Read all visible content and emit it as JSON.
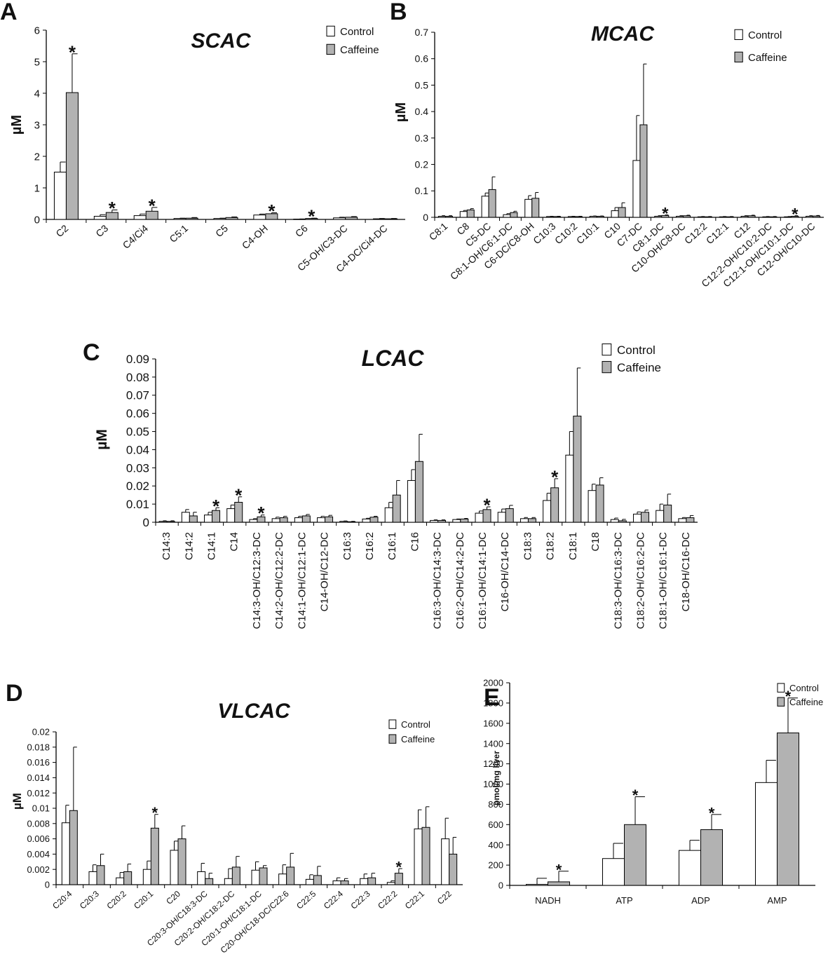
{
  "colors": {
    "control": "#ffffff",
    "caffeine": "#b2b2b2",
    "stroke": "#000000"
  },
  "chart_data": [
    {
      "id": "A",
      "type": "bar",
      "panel_label": "A",
      "title": "SCAC",
      "ylabel": "µM",
      "ylim": [
        0,
        6
      ],
      "yticks": [
        "0",
        "1",
        "2",
        "3",
        "4",
        "5",
        "6"
      ],
      "ytick_values": [
        0,
        1,
        2,
        3,
        4,
        5,
        6
      ],
      "legend": [
        "Control",
        "Caffeine"
      ],
      "categories": [
        "C2",
        "C3",
        "C4/Ci4",
        "C5:1",
        "C5",
        "C4-OH",
        "C6",
        "C5-OH/C3-DC",
        "C4-DC/Ci4-DC"
      ],
      "series": [
        {
          "name": "Control",
          "values": [
            1.5,
            0.1,
            0.12,
            0.03,
            0.03,
            0.14,
            0.01,
            0.05,
            0.02
          ],
          "errors": [
            0.32,
            0.05,
            0.05,
            0.01,
            0.01,
            0.03,
            0.005,
            0.02,
            0.01
          ]
        },
        {
          "name": "Caffeine",
          "values": [
            4.02,
            0.22,
            0.26,
            0.04,
            0.06,
            0.18,
            0.03,
            0.07,
            0.02
          ],
          "errors": [
            1.23,
            0.08,
            0.12,
            0.02,
            0.02,
            0.03,
            0.01,
            0.02,
            0.01
          ]
        }
      ],
      "significant": [
        true,
        true,
        true,
        false,
        false,
        true,
        true,
        false,
        false
      ]
    },
    {
      "id": "B",
      "type": "bar",
      "panel_label": "B",
      "title": "MCAC",
      "ylabel": "µM",
      "ylim": [
        0,
        0.7
      ],
      "yticks": [
        "0",
        "0.1",
        "0.2",
        "0.3",
        "0.4",
        "0.5",
        "0.6",
        "0.7"
      ],
      "ytick_values": [
        0,
        0.1,
        0.2,
        0.3,
        0.4,
        0.5,
        0.6,
        0.7
      ],
      "legend": [
        "Control",
        "Caffeine"
      ],
      "categories": [
        "C8:1",
        "C8",
        "C5-DC",
        "C8:1-OH/C6:1-DC",
        "C6-DC/C8-OH",
        "C10:3",
        "C10:2",
        "C10:1",
        "C10",
        "C7-DC",
        "C8:1-DC",
        "C10-OH/C8-DC",
        "C12:2",
        "C12:1",
        "C12",
        "C12:2-OH/C10:2-DC",
        "C12:1-OH/C10:1-DC",
        "C12-OH/C10-DC"
      ],
      "series": [
        {
          "name": "Control",
          "values": [
            0.004,
            0.022,
            0.08,
            0.01,
            0.068,
            0.003,
            0.003,
            0.004,
            0.025,
            0.215,
            0.004,
            0.004,
            0.002,
            0.002,
            0.004,
            0.002,
            0.002,
            0.004
          ],
          "errors": [
            0.002,
            0.004,
            0.012,
            0.004,
            0.014,
            0.001,
            0.001,
            0.001,
            0.012,
            0.17,
            0.002,
            0.002,
            0.001,
            0.001,
            0.002,
            0.001,
            0.001,
            0.002
          ]
        },
        {
          "name": "Caffeine",
          "values": [
            0.004,
            0.028,
            0.105,
            0.018,
            0.072,
            0.003,
            0.003,
            0.004,
            0.037,
            0.35,
            0.007,
            0.006,
            0.002,
            0.002,
            0.006,
            0.002,
            0.004,
            0.005
          ],
          "errors": [
            0.002,
            0.005,
            0.048,
            0.005,
            0.022,
            0.001,
            0.001,
            0.001,
            0.018,
            0.23,
            0.002,
            0.002,
            0.001,
            0.001,
            0.002,
            0.001,
            0.002,
            0.002
          ]
        }
      ],
      "significant": [
        false,
        false,
        false,
        false,
        false,
        false,
        false,
        false,
        false,
        false,
        true,
        false,
        false,
        false,
        false,
        false,
        true,
        false
      ]
    },
    {
      "id": "C",
      "type": "bar",
      "panel_label": "C",
      "title": "LCAC",
      "ylabel": "µM",
      "ylim": [
        0,
        0.09
      ],
      "yticks": [
        "0",
        "0.01",
        "0.02",
        "0.03",
        "0.04",
        "0.05",
        "0.06",
        "0.07",
        "0.08",
        "0.09"
      ],
      "ytick_values": [
        0,
        0.01,
        0.02,
        0.03,
        0.04,
        0.05,
        0.06,
        0.07,
        0.08,
        0.09
      ],
      "legend": [
        "Control",
        "Caffeine"
      ],
      "categories": [
        "C14:3",
        "C14:2",
        "C14:1",
        "C14",
        "C14:3-OH/C12:3-DC",
        "C14:2-OH/C12:2-DC",
        "C14:1-OH/C12:1-DC",
        "C14-OH/C12-DC",
        "C16:3",
        "C16:2",
        "C16:1",
        "C16",
        "C16:3-OH/C14:3-DC",
        "C16:2-OH/C14:2-DC",
        "C16:1-OH/C14:1-DC",
        "C16-OH/C14-DC",
        "C18:3",
        "C18:2",
        "C18:1",
        "C18",
        "C18:3-OH/C16:3-DC",
        "C18:2-OH/C16:2-DC",
        "C18:1-OH/C16:1-DC",
        "C18-OH/C16-DC"
      ],
      "series": [
        {
          "name": "Control",
          "values": [
            0.0005,
            0.0055,
            0.004,
            0.0075,
            0.0015,
            0.002,
            0.0025,
            0.0025,
            0.0005,
            0.0018,
            0.008,
            0.023,
            0.001,
            0.0015,
            0.005,
            0.0055,
            0.002,
            0.012,
            0.037,
            0.0175,
            0.0015,
            0.0045,
            0.0065,
            0.002
          ],
          "errors": [
            0.0003,
            0.0015,
            0.0015,
            0.002,
            0.0005,
            0.0008,
            0.0008,
            0.0008,
            0.0002,
            0.0004,
            0.003,
            0.006,
            0.0003,
            0.0003,
            0.0012,
            0.0018,
            0.0006,
            0.004,
            0.013,
            0.0035,
            0.0008,
            0.0012,
            0.0035,
            0.0006
          ]
        },
        {
          "name": "Caffeine",
          "values": [
            0.0005,
            0.0035,
            0.0065,
            0.011,
            0.003,
            0.0025,
            0.0035,
            0.003,
            0.0003,
            0.0028,
            0.015,
            0.0335,
            0.001,
            0.0018,
            0.007,
            0.0075,
            0.002,
            0.019,
            0.0585,
            0.0205,
            0.0008,
            0.0055,
            0.0095,
            0.0025
          ],
          "errors": [
            0.0003,
            0.002,
            0.0015,
            0.003,
            0.001,
            0.0008,
            0.0008,
            0.0008,
            0.0002,
            0.0005,
            0.008,
            0.015,
            0.0003,
            0.0003,
            0.0015,
            0.0018,
            0.0006,
            0.005,
            0.0265,
            0.004,
            0.0008,
            0.0012,
            0.006,
            0.0012
          ]
        }
      ],
      "significant": [
        false,
        false,
        true,
        true,
        true,
        false,
        false,
        false,
        false,
        false,
        false,
        false,
        false,
        false,
        true,
        false,
        false,
        true,
        false,
        false,
        false,
        false,
        false,
        false
      ]
    },
    {
      "id": "D",
      "type": "bar",
      "panel_label": "D",
      "title": "VLCAC",
      "ylabel": "µM",
      "ylim": [
        0,
        0.02
      ],
      "yticks": [
        "0",
        "0.002",
        "0.004",
        "0.006",
        "0.008",
        "0.01",
        "0.012",
        "0.014",
        "0.016",
        "0.018",
        "0.02"
      ],
      "ytick_values": [
        0,
        0.002,
        0.004,
        0.006,
        0.008,
        0.01,
        0.012,
        0.014,
        0.016,
        0.018,
        0.02
      ],
      "legend": [
        "Control",
        "Caffeine"
      ],
      "categories": [
        "C20:4",
        "C20:3",
        "C20:2",
        "C20:1",
        "C20",
        "C20:3-OH/C18:3-DC",
        "C20:2-OH/C18:2-DC",
        "C20:1-OH/C18:1-DC",
        "C20-OH/C18-DC/C22:6",
        "C22:5",
        "C22:4",
        "C22:3",
        "C22:2",
        "C22:1",
        "C22"
      ],
      "series": [
        {
          "name": "Control",
          "values": [
            0.0081,
            0.0017,
            0.0009,
            0.002,
            0.0045,
            0.0017,
            0.0008,
            0.0019,
            0.0014,
            0.0007,
            0.0005,
            0.0008,
            0.0003,
            0.0073,
            0.006
          ],
          "errors": [
            0.0023,
            0.0009,
            0.0007,
            0.0011,
            0.0012,
            0.0011,
            0.0013,
            0.0011,
            0.0012,
            0.0006,
            0.0004,
            0.0006,
            0.0002,
            0.0025,
            0.0027
          ]
        },
        {
          "name": "Caffeine",
          "values": [
            0.0097,
            0.0025,
            0.0017,
            0.0074,
            0.006,
            0.0008,
            0.0023,
            0.0022,
            0.0023,
            0.0012,
            0.0005,
            0.0009,
            0.0015,
            0.0075,
            0.004
          ],
          "errors": [
            0.0083,
            0.0015,
            0.001,
            0.0018,
            0.0017,
            0.0007,
            0.0014,
            0.0003,
            0.0018,
            0.0012,
            0.0003,
            0.0006,
            0.0006,
            0.0027,
            0.0022
          ]
        }
      ],
      "significant": [
        false,
        false,
        false,
        true,
        false,
        false,
        false,
        false,
        false,
        false,
        false,
        false,
        true,
        false,
        false
      ]
    },
    {
      "id": "E",
      "type": "bar",
      "panel_label": "E",
      "title": "",
      "ylabel": "pmol/mg liver",
      "ylim": [
        0,
        2000
      ],
      "yticks": [
        "0",
        "200",
        "400",
        "600",
        "800",
        "1000",
        "1200",
        "1400",
        "1600",
        "1800",
        "2000"
      ],
      "ytick_values": [
        0,
        200,
        400,
        600,
        800,
        1000,
        1200,
        1400,
        1600,
        1800,
        2000
      ],
      "legend": [
        "Control",
        "Caffeine"
      ],
      "categories": [
        "NADH",
        "ATP",
        "ADP",
        "AMP"
      ],
      "series": [
        {
          "name": "Control",
          "values": [
            10,
            265,
            345,
            1015
          ],
          "errors": [
            60,
            150,
            100,
            220
          ]
        },
        {
          "name": "Caffeine",
          "values": [
            35,
            600,
            550,
            1505
          ],
          "errors": [
            105,
            275,
            150,
            345
          ]
        }
      ],
      "significant": [
        true,
        true,
        true,
        true
      ]
    }
  ]
}
